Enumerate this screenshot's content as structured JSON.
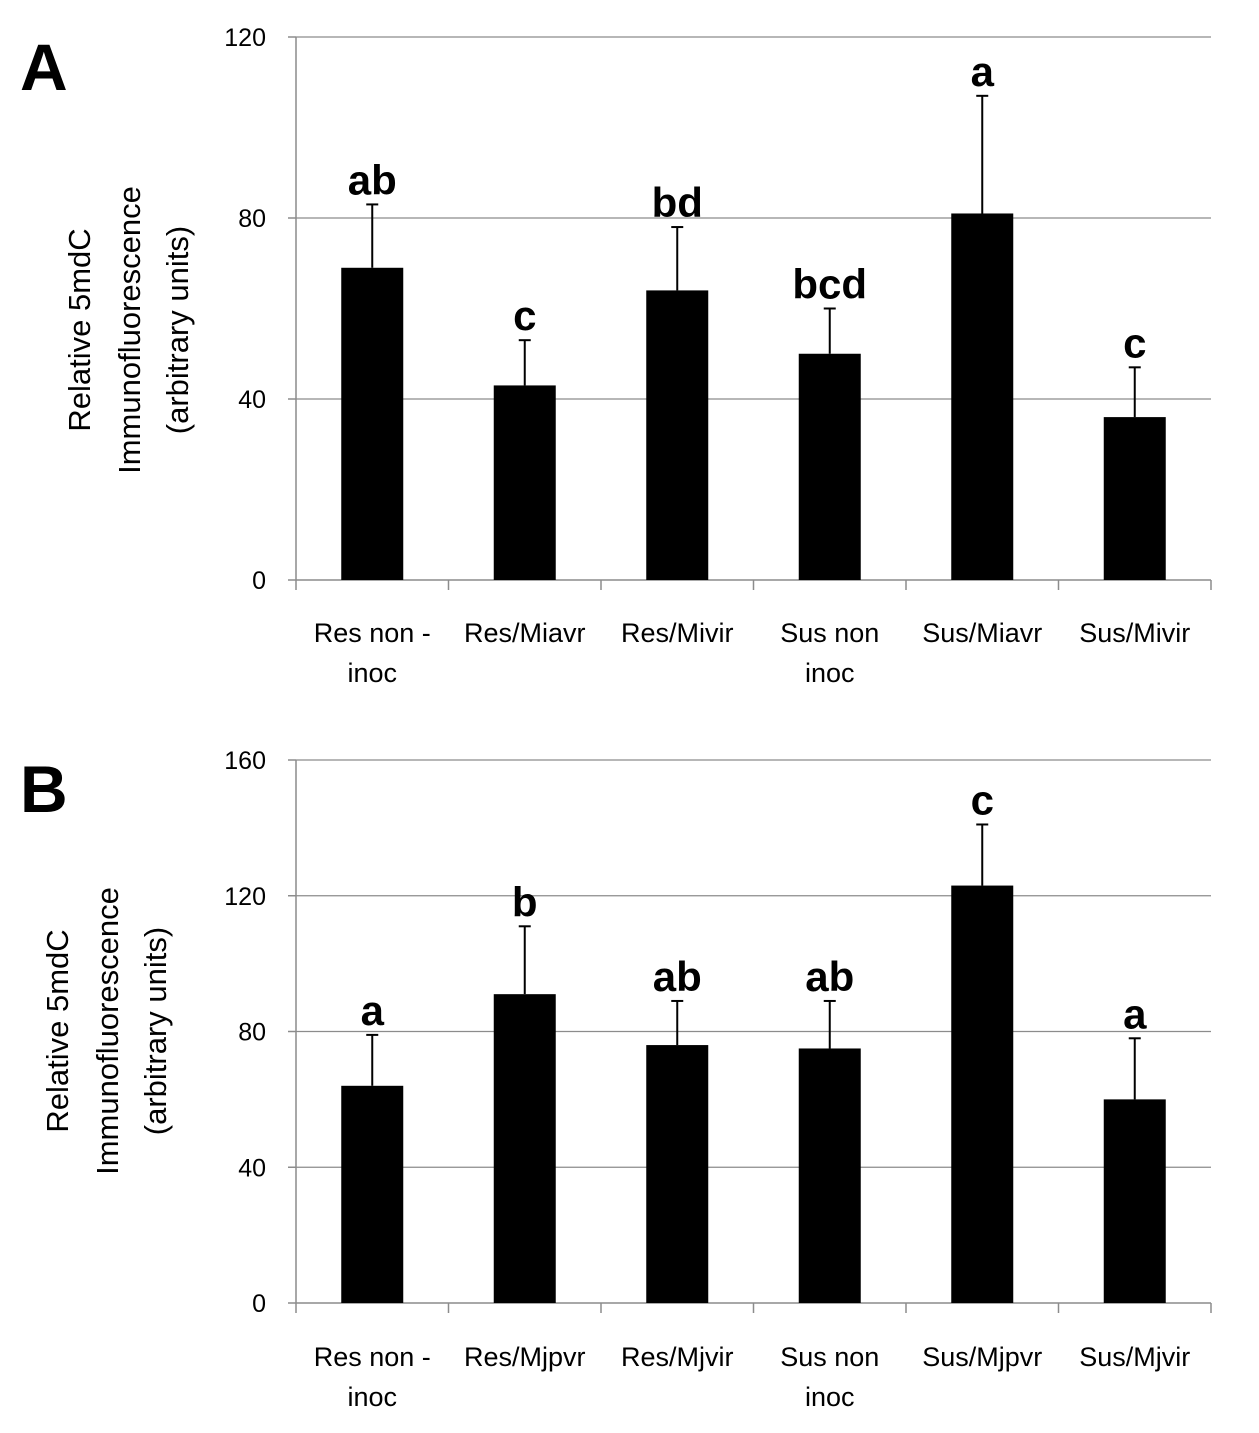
{
  "chart_data": [
    {
      "type": "bar",
      "panel": "A",
      "categories": [
        [
          "Res non -",
          "inoc"
        ],
        [
          "Res/Miavr"
        ],
        [
          "Res/Mivir"
        ],
        [
          "Sus non",
          "inoc"
        ],
        [
          "Sus/Miavr"
        ],
        [
          "Sus/Mivir"
        ]
      ],
      "values": [
        69,
        43,
        64,
        50,
        81,
        36
      ],
      "errors": [
        14,
        10,
        14,
        10,
        26,
        11
      ],
      "significance_labels": [
        "ab",
        "c",
        "bd",
        "bcd",
        "a",
        "c"
      ],
      "ylabel": [
        "Relative 5mdC",
        "Immunofluorescence",
        "(arbitrary units)"
      ],
      "ylim": [
        0,
        120
      ],
      "yticks": [
        0,
        40,
        80,
        120
      ],
      "grid": true,
      "bar_color": "#000000"
    },
    {
      "type": "bar",
      "panel": "B",
      "categories": [
        [
          "Res non -",
          "inoc"
        ],
        [
          "Res/Mjpvr"
        ],
        [
          "Res/Mjvir"
        ],
        [
          "Sus non",
          "inoc"
        ],
        [
          "Sus/Mjpvr"
        ],
        [
          "Sus/Mjvir"
        ]
      ],
      "values": [
        64,
        91,
        76,
        75,
        123,
        60
      ],
      "errors": [
        15,
        20,
        13,
        14,
        18,
        18
      ],
      "significance_labels": [
        "a",
        "b",
        "ab",
        "ab",
        "c",
        "a"
      ],
      "ylabel": [
        "Relative 5mdC",
        "Immunofluorescence",
        "(arbitrary units)"
      ],
      "ylim": [
        0,
        160
      ],
      "yticks": [
        0,
        40,
        80,
        120,
        160
      ],
      "grid": true,
      "bar_color": "#000000"
    }
  ]
}
